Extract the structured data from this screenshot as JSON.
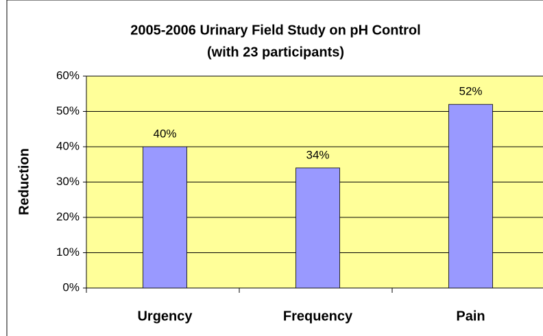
{
  "chart_data": {
    "type": "bar",
    "title": "2005-2006 Urinary Field Study on pH Control",
    "subtitle": "(with 23 participants)",
    "y_label": "Reduction",
    "categories": [
      "Urgency",
      "Frequency",
      "Pain"
    ],
    "values": [
      40,
      34,
      52
    ],
    "value_labels": [
      "40%",
      "34%",
      "52%"
    ],
    "color": "#9999ff",
    "ylim": [
      0,
      60
    ],
    "yticks": [
      {
        "value": 0,
        "label": "0%"
      },
      {
        "value": 10,
        "label": "10%"
      },
      {
        "value": 20,
        "label": "20%"
      },
      {
        "value": 30,
        "label": "30%"
      },
      {
        "value": 40,
        "label": "40%"
      },
      {
        "value": 50,
        "label": "50%"
      },
      {
        "value": 60,
        "label": "60%"
      }
    ],
    "grid": true
  }
}
